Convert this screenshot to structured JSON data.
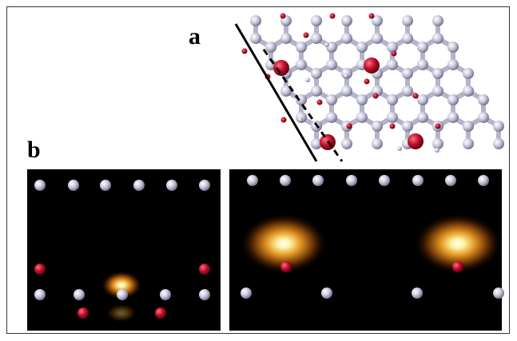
{
  "panels": {
    "a": {
      "label": "a"
    },
    "b": {
      "label": "b"
    }
  }
}
